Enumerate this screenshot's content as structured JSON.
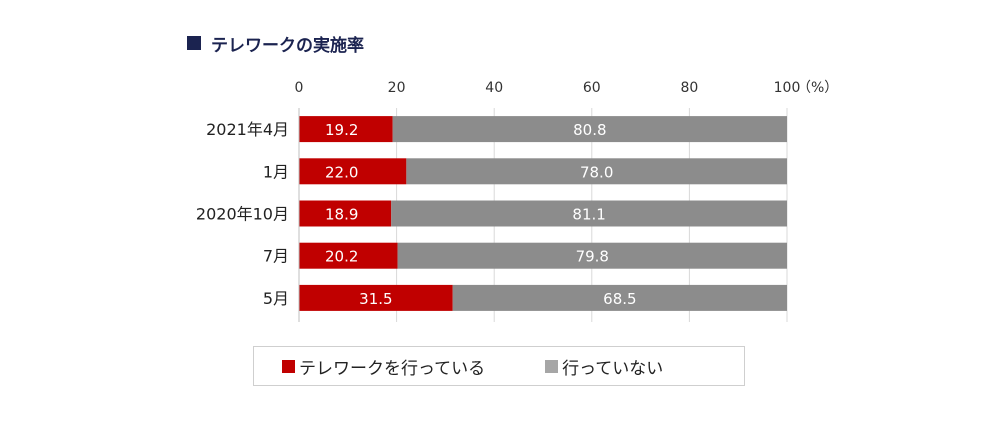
{
  "title": "テレワークの実施率",
  "unit": "（%）",
  "colors": {
    "title": "#1b2350",
    "series1": "#c00000",
    "series2": "#8c8c8c",
    "grid": "#d9d9d9",
    "legend_series2": "#a6a6a6"
  },
  "legend": [
    {
      "label": "テレワークを行っている",
      "color": "#c00000"
    },
    {
      "label": "行っていない",
      "color": "#a6a6a6"
    }
  ],
  "chart_data": {
    "type": "bar",
    "orientation": "horizontal",
    "stacked": true,
    "categories": [
      "2021年4月",
      "1月",
      "2020年10月",
      "7月",
      "5月"
    ],
    "series": [
      {
        "name": "テレワークを行っている",
        "values": [
          19.2,
          22.0,
          18.9,
          20.2,
          31.5
        ],
        "labels": [
          "19.2",
          "22.0",
          "18.9",
          "20.2",
          "31.5"
        ]
      },
      {
        "name": "行っていない",
        "values": [
          80.8,
          78.0,
          81.1,
          79.8,
          68.5
        ],
        "labels": [
          "80.8",
          "78.0",
          "81.1",
          "79.8",
          "68.5"
        ]
      }
    ],
    "xlim": [
      0,
      100
    ],
    "xticks": [
      "0",
      "20",
      "40",
      "60",
      "80",
      "100"
    ],
    "xtick_values": [
      0,
      20,
      40,
      60,
      80,
      100
    ],
    "grid": true,
    "legend_position": "bottom"
  }
}
